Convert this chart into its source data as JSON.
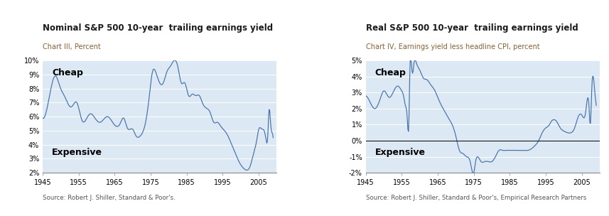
{
  "chart1": {
    "title": "Nominal S&P 500 10-year  trailing earnings yield",
    "subtitle": "Chart III, Percent",
    "source": "Source: Robert J. Shiller, Standard & Poor's.",
    "label_cheap": "Cheap",
    "label_expensive": "Expensive",
    "ylim": [
      0.02,
      0.1
    ],
    "yticks": [
      0.02,
      0.03,
      0.04,
      0.05,
      0.06,
      0.07,
      0.08,
      0.09,
      0.1
    ],
    "ytick_labels": [
      "2%",
      "3%",
      "4%",
      "5%",
      "6%",
      "7%",
      "8%",
      "9%",
      "10%"
    ],
    "xlim": [
      1945,
      2010
    ],
    "xticks": [
      1945,
      1955,
      1965,
      1975,
      1985,
      1995,
      2005
    ],
    "xtick_labels": [
      "1945",
      "1955",
      "1965",
      "1975",
      "1985",
      "1995",
      "2005"
    ]
  },
  "chart2": {
    "title": "Real S&P 500 10-year  trailing earnings yield",
    "subtitle": "Chart IV, Earnings yield less headline CPI, percent",
    "source": "Source: Robert J. Shiller, Standard & Poor's, Empirical Research Partners",
    "label_cheap": "Cheap",
    "label_expensive": "Expensive",
    "ylim": [
      -0.02,
      0.05
    ],
    "yticks": [
      -0.02,
      -0.01,
      0.0,
      0.01,
      0.02,
      0.03,
      0.04,
      0.05
    ],
    "ytick_labels": [
      "-2%",
      "-1%",
      "0%",
      "1%",
      "2%",
      "3%",
      "4%",
      "5%"
    ],
    "xlim": [
      1945,
      2010
    ],
    "xticks": [
      1945,
      1955,
      1965,
      1975,
      1985,
      1995,
      2005
    ],
    "xtick_labels": [
      "1945",
      "1955",
      "1965",
      "1975",
      "1985",
      "1995",
      "2005"
    ]
  },
  "line_color": "#4472a8",
  "bg_color": "#dce9f5",
  "title_color": "#1a1a1a",
  "source_color": "#555555"
}
